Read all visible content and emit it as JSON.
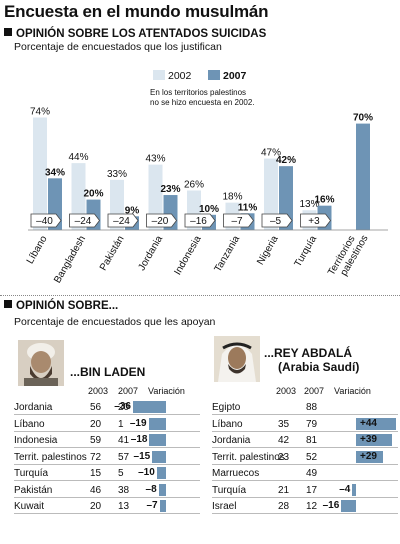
{
  "title": "Encuesta en el mundo musulmán",
  "section1": {
    "heading": "OPINIÓN SOBRE LOS ATENTADOS SUICIDAS",
    "subtitle": "Porcentaje de encuestados que los justifican",
    "note_line1": "En los territorios palestinos",
    "note_line2": "no se hizo encuesta en 2002."
  },
  "colors": {
    "y2002": "#dbe6ef",
    "y2007": "#6e94b5",
    "dark": "#2c5d86",
    "text": "#111111"
  },
  "chart_data": {
    "type": "bar",
    "categories": [
      "Líbano",
      "Bangladesh",
      "Pakistán",
      "Jordania",
      "Indonesia",
      "Tanzania",
      "Nigeria",
      "Turquía",
      "Territorios palestinos"
    ],
    "category_lines": [
      [
        "Líbano"
      ],
      [
        "Bangladesh"
      ],
      [
        "Pakistán"
      ],
      [
        "Jordania"
      ],
      [
        "Indonesia"
      ],
      [
        "Tanzania"
      ],
      [
        "Nigeria"
      ],
      [
        "Turquía"
      ],
      [
        "Territorios",
        "palestinos"
      ]
    ],
    "series": [
      {
        "name": "2002",
        "values": [
          74,
          44,
          33,
          43,
          26,
          18,
          47,
          13,
          null
        ]
      },
      {
        "name": "2007",
        "values": [
          34,
          20,
          9,
          23,
          10,
          11,
          42,
          16,
          70
        ]
      }
    ],
    "value_labels_2002": [
      "74%",
      "44%",
      "33%",
      "43%",
      "26%",
      "18%",
      "47%",
      "13%",
      ""
    ],
    "value_labels_2007": [
      "34%",
      "20%",
      "9%",
      "23%",
      "10%",
      "11%",
      "42%",
      "16%",
      "70%"
    ],
    "change_labels": [
      "–40",
      "–24",
      "–24",
      "–20",
      "–16",
      "–7",
      "–5",
      "+3",
      ""
    ],
    "ylim": [
      0,
      80
    ]
  },
  "section2": {
    "heading": "OPINIÓN SOBRE...",
    "subtitle": "Porcentaje de encuestados que les apoyan"
  },
  "panels": [
    {
      "title_line1": "...BIN LADEN",
      "title_line2": "",
      "col_headers": [
        "2003",
        "2007",
        "Variación"
      ],
      "rows": [
        {
          "country": "Jordania",
          "v2003": "56",
          "v2007": "20",
          "change": -36,
          "change_label": "–36"
        },
        {
          "country": "Líbano",
          "v2003": "20",
          "v2007": "1",
          "change": -19,
          "change_label": "–19"
        },
        {
          "country": "Indonesia",
          "v2003": "59",
          "v2007": "41",
          "change": -18,
          "change_label": "–18"
        },
        {
          "country": "Territ. palestinos",
          "v2003": "72",
          "v2007": "57",
          "change": -15,
          "change_label": "–15"
        },
        {
          "country": "Turquía",
          "v2003": "15",
          "v2007": "5",
          "change": -10,
          "change_label": "–10"
        },
        {
          "country": "Pakistán",
          "v2003": "46",
          "v2007": "38",
          "change": -8,
          "change_label": "–8"
        },
        {
          "country": "Kuwait",
          "v2003": "20",
          "v2007": "13",
          "change": -7,
          "change_label": "–7"
        }
      ]
    },
    {
      "title_line1": "...REY ABDALÁ",
      "title_line2": "(Arabia Saudí)",
      "col_headers": [
        "2003",
        "2007",
        "Variación"
      ],
      "rows": [
        {
          "country": "Egipto",
          "v2003": "",
          "v2007": "88",
          "change": null,
          "change_label": ""
        },
        {
          "country": "Líbano",
          "v2003": "35",
          "v2007": "79",
          "change": 44,
          "change_label": "+44"
        },
        {
          "country": "Jordania",
          "v2003": "42",
          "v2007": "81",
          "change": 39,
          "change_label": "+39"
        },
        {
          "country": "Territ. palestinos",
          "v2003": "23",
          "v2007": "52",
          "change": 29,
          "change_label": "+29"
        },
        {
          "country": "Marruecos",
          "v2003": "",
          "v2007": "49",
          "change": null,
          "change_label": ""
        },
        {
          "country": "Turquía",
          "v2003": "21",
          "v2007": "17",
          "change": -4,
          "change_label": "–4"
        },
        {
          "country": "Israel",
          "v2003": "28",
          "v2007": "12",
          "change": -16,
          "change_label": "–16"
        }
      ]
    }
  ]
}
